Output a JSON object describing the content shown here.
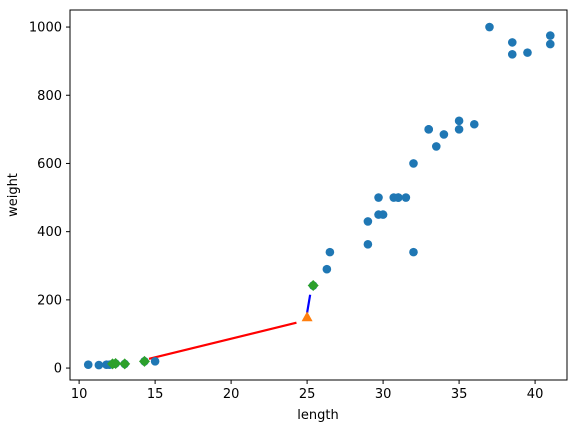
{
  "chart_data": {
    "type": "scatter",
    "title": "",
    "xlabel": "length",
    "ylabel": "weight",
    "xlim": [
      9.4,
      42.1
    ],
    "ylim": [
      -35,
      1050
    ],
    "x_ticks": [
      10,
      15,
      20,
      25,
      30,
      35,
      40
    ],
    "y_ticks": [
      0,
      200,
      400,
      600,
      800,
      1000
    ],
    "grid": false,
    "colors": {
      "points": "#1f77b4",
      "query": "#ff7f0e",
      "neighbors": "#2ca02c",
      "line_red": "#ff0000",
      "line_blue": "#0000ff"
    },
    "series": [
      {
        "marker": "circle",
        "color": "#1f77b4",
        "points": [
          [
            25.4,
            242
          ],
          [
            26.3,
            290
          ],
          [
            26.5,
            340
          ],
          [
            29.0,
            363
          ],
          [
            29.0,
            430
          ],
          [
            29.7,
            450
          ],
          [
            29.7,
            500
          ],
          [
            30.0,
            450
          ],
          [
            30.7,
            500
          ],
          [
            31.0,
            500
          ],
          [
            31.0,
            500
          ],
          [
            31.5,
            500
          ],
          [
            32.0,
            340
          ],
          [
            32.0,
            600
          ],
          [
            33.0,
            700
          ],
          [
            33.0,
            700
          ],
          [
            33.5,
            650
          ],
          [
            34.0,
            685
          ],
          [
            35.0,
            725
          ],
          [
            35.0,
            700
          ],
          [
            36.0,
            715
          ],
          [
            37.0,
            1000
          ],
          [
            38.5,
            920
          ],
          [
            38.5,
            955
          ],
          [
            39.5,
            925
          ],
          [
            41.0,
            975
          ],
          [
            41.0,
            950
          ],
          [
            10.6,
            9.8
          ],
          [
            11.3,
            8.7
          ],
          [
            11.8,
            10.0
          ],
          [
            12.0,
            9.9
          ],
          [
            12.2,
            12.2
          ],
          [
            12.4,
            13.4
          ],
          [
            13.0,
            12.2
          ],
          [
            14.3,
            19.7
          ],
          [
            15.0,
            19.9
          ]
        ]
      },
      {
        "marker": "triangle",
        "color": "#ff7f0e",
        "points": [
          [
            25,
            150
          ]
        ]
      },
      {
        "marker": "diamond",
        "color": "#2ca02c",
        "points": [
          [
            25.4,
            242
          ],
          [
            12.4,
            13.4
          ],
          [
            12.2,
            12.2
          ],
          [
            13.0,
            12.2
          ],
          [
            14.3,
            19.7
          ]
        ]
      }
    ],
    "lines": [
      {
        "color": "#ff0000",
        "points": [
          [
            14.6,
            27
          ],
          [
            24.3,
            133
          ]
        ]
      },
      {
        "color": "#0000ff",
        "points": [
          [
            25.2,
            215
          ],
          [
            25.0,
            162
          ]
        ]
      }
    ]
  }
}
